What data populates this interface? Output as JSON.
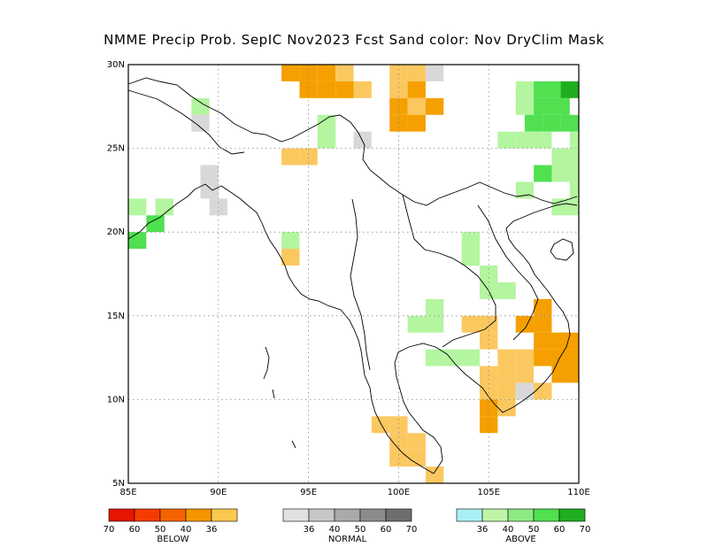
{
  "title": "NMME Precip Prob. SepIC  Nov2023 Fcst  Sand color: Nov DryClim Mask",
  "map": {
    "lat_labels": [
      "30N",
      "25N",
      "20N",
      "15N",
      "10N",
      "5N"
    ],
    "lon_labels": [
      "85E",
      "90E",
      "95E",
      "100E",
      "105E",
      "110E"
    ],
    "lon_range": [
      85,
      110
    ],
    "lat_range": [
      5,
      30
    ],
    "grid": "dotted",
    "colors": {
      "below_light": "#fbc860",
      "below_mid": "#f5a000",
      "below_strong": "#f57800",
      "normal": "#d8d8d8",
      "above_light": "#b4f5a0",
      "above_mid": "#50e050",
      "above_strong": "#1fae1f",
      "dry_mask": "#fbe08c"
    }
  },
  "legend": {
    "below": {
      "name": "BELOW",
      "ticks": [
        "70",
        "60",
        "50",
        "40",
        "36"
      ],
      "colors": [
        "#e61400",
        "#f53c00",
        "#f56400",
        "#f59600",
        "#fbc850"
      ]
    },
    "normal": {
      "name": "NORMAL",
      "ticks": [
        "36",
        "40",
        "50",
        "60",
        "70"
      ],
      "colors": [
        "#e1e1e1",
        "#c8c8c8",
        "#aaaaaa",
        "#8c8c8c",
        "#6e6e6e"
      ]
    },
    "above": {
      "name": "ABOVE",
      "ticks": [
        "36",
        "40",
        "50",
        "60",
        "70"
      ],
      "colors": [
        "#aaf0f5",
        "#c0f5a8",
        "#8ceb82",
        "#50e050",
        "#1fae1f"
      ]
    }
  }
}
